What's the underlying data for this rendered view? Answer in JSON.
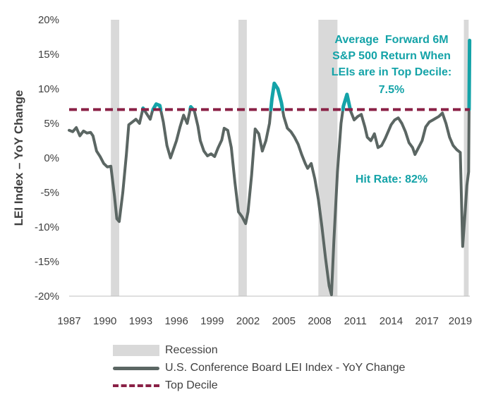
{
  "chart_data": {
    "type": "line",
    "title": "",
    "ylabel": "LEI Index – YoY Change",
    "xlabel": "",
    "ylim": [
      -20,
      20
    ],
    "xlim": [
      1987,
      2020.6
    ],
    "y_ticks": [
      20,
      15,
      10,
      5,
      0,
      -5,
      -10,
      -15,
      -20
    ],
    "y_tick_labels": [
      "20%",
      "15%",
      "10%",
      "5%",
      "0%",
      "-5%",
      "-10%",
      "-15%",
      "-20%"
    ],
    "x_ticks": [
      1987,
      1990,
      1993,
      1996,
      1999,
      2002,
      2005,
      2008,
      2011,
      2014,
      2017,
      2019.8
    ],
    "x_tick_labels": [
      "1987",
      "1990",
      "1993",
      "1996",
      "1999",
      "2002",
      "2005",
      "2008",
      "2011",
      "2014",
      "2017",
      "2019"
    ],
    "grid": false,
    "legend_position": "bottom",
    "top_decile_value": 7.0,
    "recessions": [
      [
        1990.5,
        1991.2
      ],
      [
        2001.2,
        2001.9
      ],
      [
        2007.9,
        2009.5
      ],
      [
        2020.1,
        2020.5
      ]
    ],
    "series": [
      {
        "name": "U.S. Conference Board LEI Index - YoY Change",
        "color": "#5b6663",
        "highlight_color": "#14a3a8",
        "x": [
          1987.0,
          1987.3,
          1987.6,
          1987.9,
          1988.2,
          1988.5,
          1988.8,
          1989.0,
          1989.3,
          1989.6,
          1989.9,
          1990.2,
          1990.5,
          1990.8,
          1991.0,
          1991.2,
          1991.5,
          1991.8,
          1992.0,
          1992.3,
          1992.6,
          1992.9,
          1993.2,
          1993.5,
          1993.8,
          1994.0,
          1994.3,
          1994.6,
          1994.9,
          1995.2,
          1995.5,
          1995.8,
          1996.0,
          1996.3,
          1996.6,
          1996.9,
          1997.2,
          1997.5,
          1997.8,
          1998.0,
          1998.3,
          1998.6,
          1998.9,
          1999.2,
          1999.5,
          1999.8,
          2000.0,
          2000.3,
          2000.6,
          2000.9,
          2001.2,
          2001.5,
          2001.8,
          2002.0,
          2002.3,
          2002.6,
          2002.9,
          2003.2,
          2003.5,
          2003.8,
          2004.0,
          2004.2,
          2004.5,
          2004.8,
          2005.0,
          2005.3,
          2005.6,
          2005.9,
          2006.2,
          2006.5,
          2006.8,
          2007.0,
          2007.3,
          2007.6,
          2007.9,
          2008.2,
          2008.5,
          2008.8,
          2009.0,
          2009.2,
          2009.5,
          2009.8,
          2010.0,
          2010.3,
          2010.6,
          2010.9,
          2011.2,
          2011.5,
          2011.8,
          2012.0,
          2012.3,
          2012.6,
          2012.9,
          2013.2,
          2013.5,
          2013.8,
          2014.0,
          2014.3,
          2014.6,
          2014.9,
          2015.2,
          2015.5,
          2015.8,
          2016.0,
          2016.3,
          2016.6,
          2016.9,
          2017.2,
          2017.5,
          2017.8,
          2018.0,
          2018.3,
          2018.6,
          2018.9,
          2019.2,
          2019.5,
          2019.8,
          2020.0,
          2020.2,
          2020.35,
          2020.5,
          2020.58
        ],
        "values": [
          4.0,
          3.8,
          4.4,
          3.2,
          3.9,
          3.6,
          3.7,
          3.2,
          1.0,
          0.2,
          -0.8,
          -1.3,
          -1.2,
          -5.5,
          -8.8,
          -9.2,
          -5.0,
          0.5,
          4.8,
          5.2,
          5.6,
          5.0,
          7.2,
          6.4,
          5.6,
          6.9,
          7.8,
          7.6,
          5.2,
          1.8,
          0.0,
          1.5,
          2.5,
          4.5,
          6.2,
          5.0,
          7.4,
          6.8,
          4.6,
          2.5,
          1.0,
          0.3,
          0.6,
          0.2,
          1.5,
          2.6,
          4.3,
          4.0,
          1.5,
          -3.5,
          -7.8,
          -8.5,
          -9.5,
          -7.8,
          -2.5,
          4.2,
          3.5,
          1.0,
          2.5,
          5.0,
          8.5,
          10.8,
          10.0,
          8.0,
          6.0,
          4.3,
          3.8,
          3.0,
          2.0,
          0.5,
          -0.8,
          -1.5,
          -0.8,
          -3.0,
          -6.0,
          -10.0,
          -14.5,
          -18.5,
          -19.8,
          -12.0,
          -2.0,
          5.0,
          7.5,
          9.2,
          6.8,
          5.5,
          6.0,
          6.3,
          4.5,
          3.0,
          2.5,
          3.5,
          1.5,
          1.8,
          2.8,
          4.0,
          4.8,
          5.5,
          5.8,
          5.0,
          3.8,
          2.2,
          1.5,
          0.5,
          1.5,
          2.5,
          4.5,
          5.2,
          5.5,
          5.8,
          6.0,
          6.5,
          5.0,
          3.0,
          1.8,
          1.2,
          0.8,
          -12.8,
          -8.0,
          -4.0,
          -2.0,
          17.0
        ]
      },
      {
        "name": "Top Decile",
        "color": "#8a2146",
        "x": [
          1987.0,
          2020.6
        ],
        "values": [
          7.0,
          7.0
        ]
      }
    ],
    "annotations": [
      {
        "lines": [
          "Average  Forward 6M",
          "S&P 500 Return When",
          "LEIs are in Top Decile:",
          "7.5%"
        ]
      },
      {
        "lines": [
          "Hit Rate: 82%"
        ]
      }
    ]
  },
  "legend": {
    "recession": "Recession",
    "lei": "U.S. Conference Board LEI Index - YoY Change",
    "decile": "Top Decile"
  },
  "colors": {
    "recession": "#d9d9d9",
    "line": "#5b6663",
    "highlight": "#14a3a8",
    "decile": "#8a2146",
    "text": "#404040"
  }
}
